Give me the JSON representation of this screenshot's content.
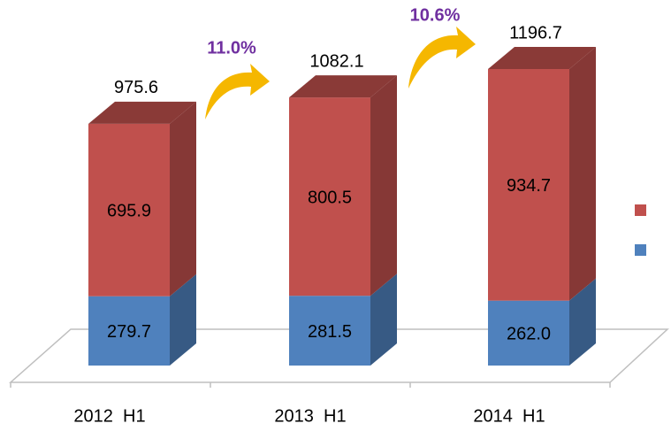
{
  "chart_data": {
    "type": "bar",
    "stacked": true,
    "categories": [
      "2012  H1",
      "2013  H1",
      "2014  H1"
    ],
    "series": [
      {
        "color": "#4f81bd",
        "values": [
          279.7,
          281.5,
          262.0
        ],
        "value_labels": [
          "279.7",
          "281.5",
          "262.0"
        ]
      },
      {
        "color": "#c0504d",
        "values": [
          695.9,
          800.5,
          934.7
        ],
        "value_labels": [
          "695.9",
          "800.5",
          "934.7"
        ]
      }
    ],
    "totals": [
      975.6,
      1082.1,
      1196.7
    ],
    "growth_rates": {
      "values": [
        11.0,
        10.6
      ],
      "value_labels": [
        "11.0%",
        "10.6%"
      ]
    }
  }
}
